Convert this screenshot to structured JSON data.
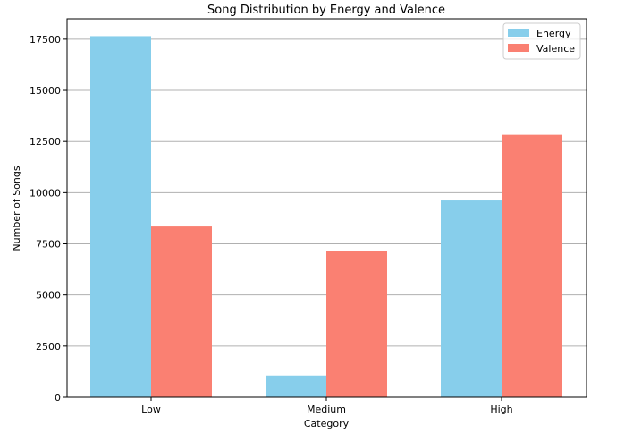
{
  "chart_data": {
    "type": "bar",
    "title": "Song Distribution by Energy and Valence",
    "xlabel": "Category",
    "ylabel": "Number of Songs",
    "categories": [
      "Low",
      "Medium",
      "High"
    ],
    "series": [
      {
        "name": "Energy",
        "values": [
          17650,
          1060,
          9620
        ],
        "color": "#87CEEB"
      },
      {
        "name": "Valence",
        "values": [
          8350,
          7150,
          12830
        ],
        "color": "#FA8072"
      }
    ],
    "ylim": [
      0,
      18500
    ],
    "yticks": [
      0,
      2500,
      5000,
      7500,
      10000,
      12500,
      15000,
      17500
    ],
    "ytick_labels": [
      "0",
      "2500",
      "5000",
      "7500",
      "10000",
      "12500",
      "15000",
      "17500"
    ],
    "grid": "horizontal",
    "legend_position": "top-right"
  }
}
